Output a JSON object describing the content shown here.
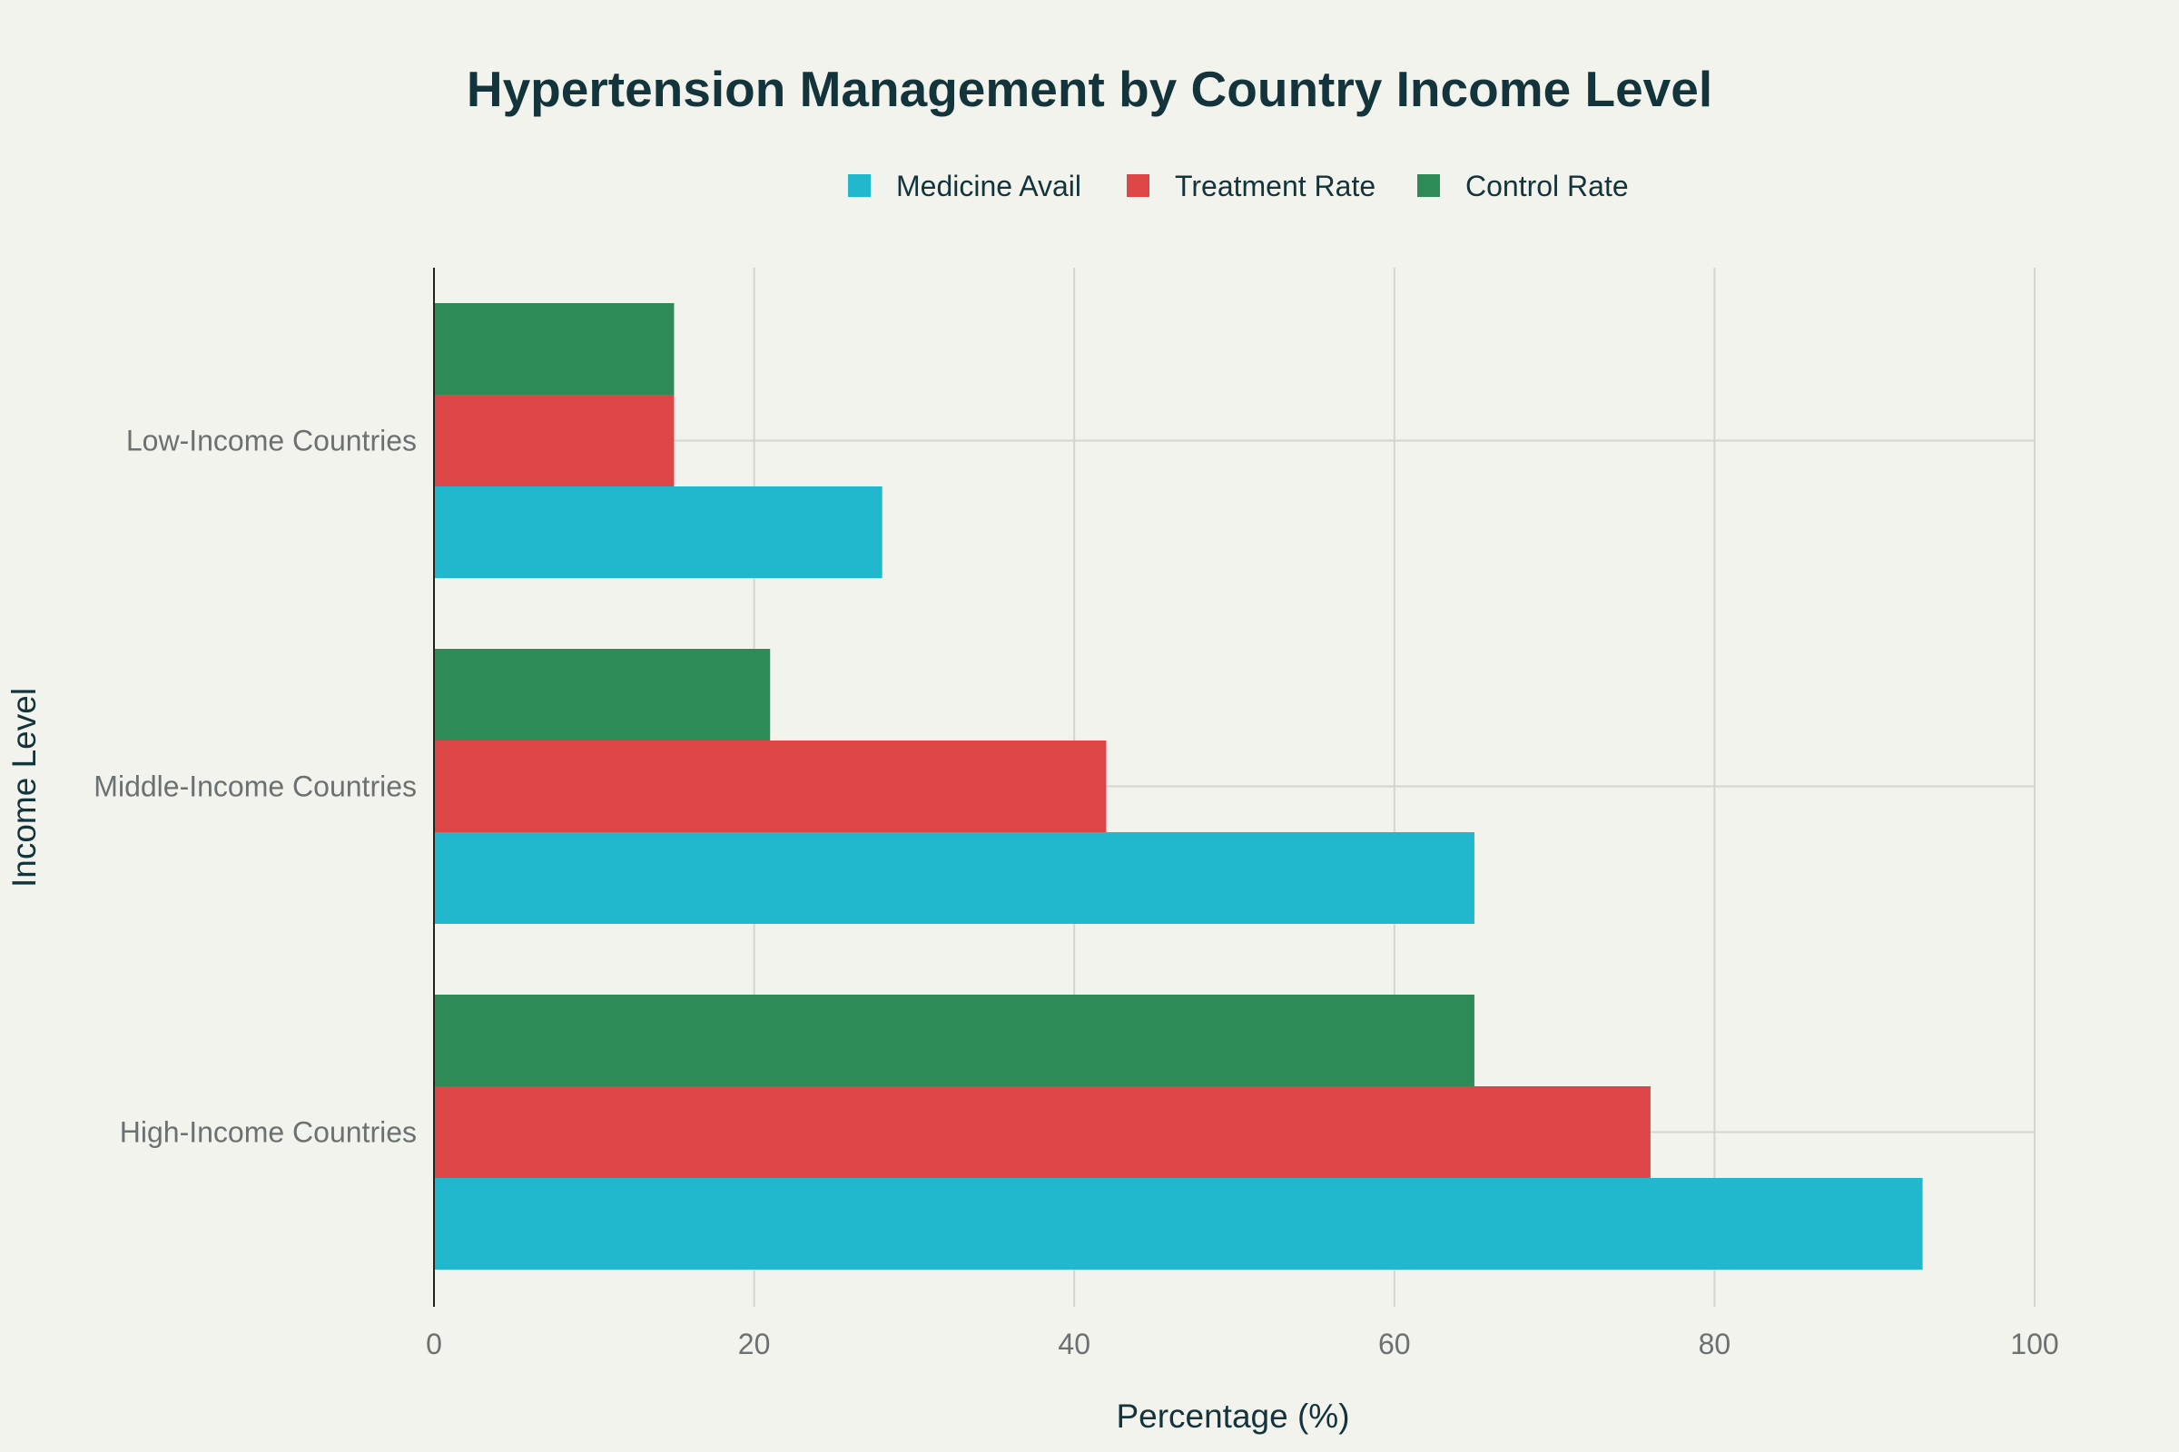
{
  "chart_data": {
    "type": "bar",
    "orientation": "horizontal",
    "title": "Hypertension Management by Country Income Level",
    "xlabel": "Percentage (%)",
    "ylabel": "Income Level",
    "xlim": [
      0,
      100
    ],
    "xticks": [
      0,
      20,
      40,
      60,
      80,
      100
    ],
    "categories": [
      "Low-Income Countries",
      "Middle-Income Countries",
      "High-Income Countries"
    ],
    "series": [
      {
        "name": "Medicine Avail",
        "color": "#21b8cd",
        "values": [
          28,
          65,
          93
        ]
      },
      {
        "name": "Treatment Rate",
        "color": "#dc4647",
        "values": [
          15,
          42,
          76
        ]
      },
      {
        "name": "Control Rate",
        "color": "#2e8b57",
        "values": [
          15,
          21,
          65
        ]
      }
    ],
    "legend_position": "top-center",
    "grid": true
  }
}
